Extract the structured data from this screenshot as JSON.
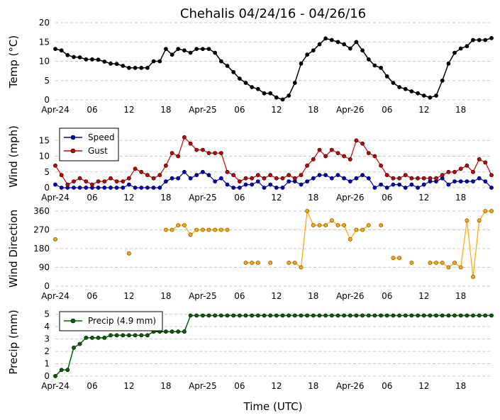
{
  "title": "Chehalis 04/24/16 - 04/26/16",
  "x_axis_label": "Time (UTC)",
  "x_tick_labels": [
    "Apr-24",
    "06",
    "12",
    "18",
    "Apr-25",
    "06",
    "12",
    "18",
    "Apr-26",
    "06",
    "12",
    "18"
  ],
  "colors": {
    "temp": "#000000",
    "speed": "#0000cc",
    "gust": "#cc0000",
    "direction_fill": "#ffa500",
    "direction_edge": "#5a4200",
    "precip": "#006400"
  },
  "chart_data": [
    {
      "type": "line",
      "ylabel": "Temp (°C)",
      "ylim": [
        0,
        20
      ],
      "yticks": [
        0,
        5,
        10,
        15,
        20
      ],
      "x_unit": "hours since Apr-24 00 UTC",
      "xlim": [
        0,
        71
      ],
      "grid": true,
      "series": [
        {
          "key": "temp",
          "x": [
            0,
            1,
            2,
            3,
            4,
            5,
            6,
            7,
            8,
            9,
            10,
            11,
            12,
            13,
            14,
            15,
            16,
            17,
            18,
            19,
            20,
            21,
            22,
            23,
            24,
            25,
            26,
            27,
            28,
            29,
            30,
            31,
            32,
            33,
            34,
            35,
            36,
            37,
            38,
            39,
            40,
            41,
            42,
            43,
            44,
            45,
            46,
            47,
            48,
            49,
            50,
            51,
            52,
            53,
            54,
            55,
            56,
            57,
            58,
            59,
            60,
            61,
            62,
            63,
            64,
            65,
            66,
            67,
            68,
            69,
            70,
            71
          ],
          "values": [
            13.2,
            12.8,
            11.6,
            11.1,
            11.0,
            10.5,
            10.5,
            10.4,
            9.9,
            9.4,
            9.3,
            8.8,
            8.3,
            8.3,
            8.3,
            8.3,
            10.0,
            10.0,
            13.2,
            11.7,
            13.2,
            12.8,
            12.2,
            13.2,
            13.2,
            13.2,
            12.2,
            10.0,
            8.8,
            7.2,
            5.5,
            4.4,
            3.3,
            2.8,
            1.7,
            1.7,
            0.6,
            0.1,
            1.1,
            4.4,
            9.4,
            11.7,
            12.8,
            14.4,
            15.9,
            15.5,
            15.0,
            14.4,
            13.3,
            15.0,
            12.8,
            10.5,
            8.9,
            8.3,
            6.1,
            4.4,
            3.3,
            2.8,
            2.2,
            1.7,
            1.1,
            0.6,
            1.1,
            5.0,
            9.4,
            12.2,
            13.3,
            13.9,
            15.5,
            15.5,
            15.5,
            16.0
          ]
        }
      ]
    },
    {
      "type": "line",
      "ylabel": "Wind (mph)",
      "ylim": [
        0,
        20
      ],
      "yticks": [
        0,
        5,
        10,
        15
      ],
      "xlim": [
        0,
        71
      ],
      "grid": true,
      "legend": "top-left",
      "series": [
        {
          "key": "speed",
          "name": "Speed",
          "x": [
            0,
            1,
            2,
            3,
            4,
            5,
            6,
            7,
            8,
            9,
            10,
            11,
            12,
            13,
            14,
            15,
            16,
            17,
            18,
            19,
            20,
            21,
            22,
            23,
            24,
            25,
            26,
            27,
            28,
            29,
            30,
            31,
            32,
            33,
            34,
            35,
            36,
            37,
            38,
            39,
            40,
            41,
            42,
            43,
            44,
            45,
            46,
            47,
            48,
            49,
            50,
            51,
            52,
            53,
            54,
            55,
            56,
            57,
            58,
            59,
            60,
            61,
            62,
            63,
            64,
            65,
            66,
            67,
            68,
            69,
            70,
            71
          ],
          "values": [
            1,
            0,
            0,
            0,
            0,
            0,
            0,
            0,
            0,
            0,
            0,
            0,
            1,
            0,
            0,
            0,
            0,
            0,
            2,
            3,
            3,
            5,
            3,
            4,
            5,
            4,
            2,
            3,
            1,
            0,
            0,
            1,
            1,
            2,
            0,
            1,
            0,
            0,
            2,
            2,
            1,
            2,
            3,
            4,
            4,
            3,
            4,
            3,
            2,
            3,
            4,
            3,
            0,
            1,
            0,
            1,
            1,
            0,
            1,
            0,
            1,
            2,
            2,
            3,
            1,
            2,
            2,
            2,
            2,
            3,
            2,
            0
          ]
        },
        {
          "key": "gust",
          "name": "Gust",
          "x": [
            0,
            1,
            2,
            3,
            4,
            5,
            6,
            7,
            8,
            9,
            10,
            11,
            12,
            13,
            14,
            15,
            16,
            17,
            18,
            19,
            20,
            21,
            22,
            23,
            24,
            25,
            26,
            27,
            28,
            29,
            30,
            31,
            32,
            33,
            34,
            35,
            36,
            37,
            38,
            39,
            40,
            41,
            42,
            43,
            44,
            45,
            46,
            47,
            48,
            49,
            50,
            51,
            52,
            53,
            54,
            55,
            56,
            57,
            58,
            59,
            60,
            61,
            62,
            63,
            64,
            65,
            66,
            67,
            68,
            69,
            70,
            71
          ],
          "values": [
            7,
            4,
            1,
            2,
            3,
            2,
            1,
            2,
            2,
            3,
            2,
            2,
            3,
            6,
            5,
            4,
            3,
            4,
            7,
            11,
            10,
            16,
            14,
            12,
            12,
            11,
            11,
            11,
            5,
            4,
            2,
            3,
            3,
            4,
            3,
            4,
            3,
            3,
            4,
            3,
            4,
            7,
            9,
            12,
            10,
            12,
            11,
            10,
            9,
            15,
            14,
            11,
            10,
            7,
            4,
            3,
            3,
            4,
            3,
            3,
            3,
            3,
            3,
            4,
            5,
            5,
            6,
            7,
            5,
            9,
            8,
            4
          ]
        }
      ]
    },
    {
      "type": "line",
      "ylabel": "Wind Direction",
      "ylim": [
        0,
        360
      ],
      "yticks": [
        0,
        90,
        180,
        270,
        360
      ],
      "xlim": [
        0,
        71
      ],
      "grid": true,
      "series": [
        {
          "key": "direction",
          "x": [
            0,
            1,
            2,
            3,
            4,
            5,
            6,
            7,
            8,
            9,
            10,
            11,
            12,
            13,
            14,
            15,
            16,
            17,
            18,
            19,
            20,
            21,
            22,
            23,
            24,
            25,
            26,
            27,
            28,
            29,
            30,
            31,
            32,
            33,
            34,
            35,
            36,
            37,
            38,
            39,
            40,
            41,
            42,
            43,
            44,
            45,
            46,
            47,
            48,
            49,
            50,
            51,
            52,
            53,
            54,
            55,
            56,
            57,
            58,
            59,
            60,
            61,
            62,
            63,
            64,
            65,
            66,
            67,
            68,
            69,
            70,
            71
          ],
          "values": [
            225,
            null,
            null,
            null,
            null,
            null,
            null,
            null,
            null,
            null,
            null,
            null,
            157,
            null,
            null,
            null,
            null,
            null,
            270,
            270,
            292,
            292,
            247,
            270,
            270,
            270,
            270,
            270,
            270,
            null,
            null,
            112,
            112,
            112,
            null,
            112,
            null,
            null,
            112,
            112,
            90,
            360,
            292,
            292,
            292,
            315,
            292,
            292,
            225,
            270,
            270,
            292,
            null,
            292,
            null,
            135,
            135,
            null,
            112,
            null,
            null,
            112,
            112,
            112,
            90,
            112,
            90,
            315,
            45,
            315,
            360,
            360
          ]
        }
      ]
    },
    {
      "type": "line",
      "ylabel": "Precip (mm)",
      "ylim": [
        0,
        5.5
      ],
      "yticks": [
        0,
        1,
        2,
        3,
        4,
        5
      ],
      "xlim": [
        0,
        71
      ],
      "grid": true,
      "legend": "top-left",
      "series": [
        {
          "key": "precip",
          "name": "Precip (4.9 mm)",
          "x": [
            0,
            1,
            2,
            3,
            4,
            5,
            6,
            7,
            8,
            9,
            10,
            11,
            12,
            13,
            14,
            15,
            16,
            17,
            18,
            19,
            20,
            21,
            22,
            23,
            24,
            25,
            26,
            27,
            28,
            29,
            30,
            31,
            32,
            33,
            34,
            35,
            36,
            37,
            38,
            39,
            40,
            41,
            42,
            43,
            44,
            45,
            46,
            47,
            48,
            49,
            50,
            51,
            52,
            53,
            54,
            55,
            56,
            57,
            58,
            59,
            60,
            61,
            62,
            63,
            64,
            65,
            66,
            67,
            68,
            69,
            70,
            71
          ],
          "values": [
            0,
            0.5,
            0.5,
            2.3,
            2.6,
            3.1,
            3.1,
            3.1,
            3.1,
            3.3,
            3.3,
            3.3,
            3.3,
            3.3,
            3.3,
            3.3,
            3.6,
            3.6,
            3.6,
            3.6,
            3.6,
            3.6,
            4.9,
            4.9,
            4.9,
            4.9,
            4.9,
            4.9,
            4.9,
            4.9,
            4.9,
            4.9,
            4.9,
            4.9,
            4.9,
            4.9,
            4.9,
            4.9,
            4.9,
            4.9,
            4.9,
            4.9,
            4.9,
            4.9,
            4.9,
            4.9,
            4.9,
            4.9,
            4.9,
            4.9,
            4.9,
            4.9,
            4.9,
            4.9,
            4.9,
            4.9,
            4.9,
            4.9,
            4.9,
            4.9,
            4.9,
            4.9,
            4.9,
            4.9,
            4.9,
            4.9,
            4.9,
            4.9,
            4.9,
            4.9,
            4.9,
            4.9
          ]
        }
      ]
    }
  ]
}
